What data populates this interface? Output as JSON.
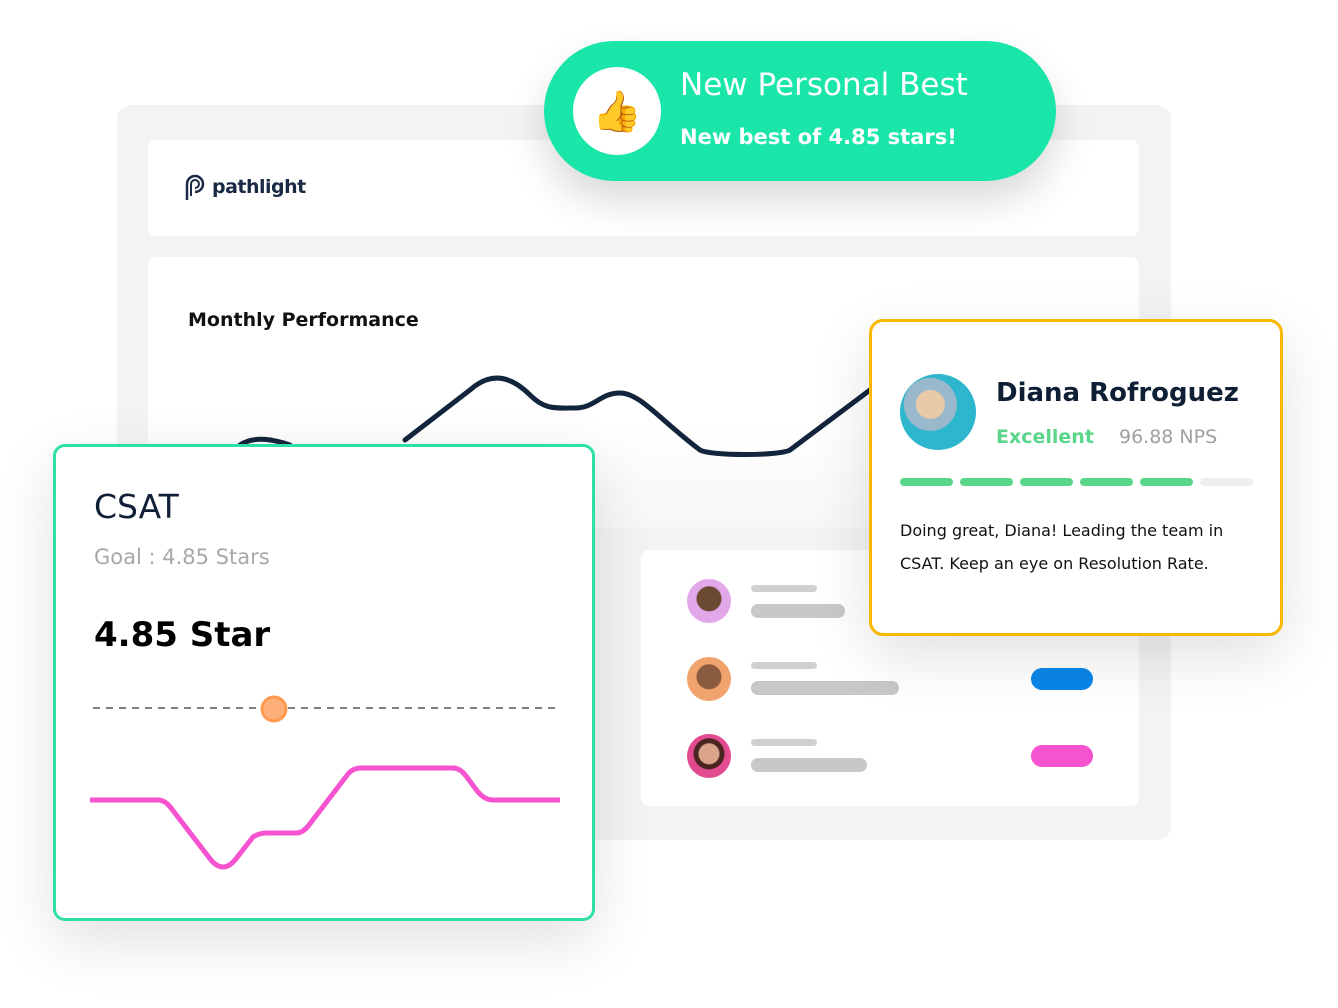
{
  "toast": {
    "title": "New Personal Best",
    "subtitle": "New best of 4.85 stars!",
    "icon": "thumbs-up-icon",
    "color": "#19e6a8"
  },
  "header": {
    "logo_text": "pathlight"
  },
  "monthly": {
    "title": "Monthly Performance"
  },
  "csat": {
    "title": "CSAT",
    "goal": "Goal : 4.85 Stars",
    "value": "4.85 Star",
    "accent": "#2ee0a8",
    "line_color": "#f553d0"
  },
  "list": {
    "rows": [
      {
        "pill": null
      },
      {
        "pill": "#0a86e8"
      },
      {
        "pill": "#f553d0"
      }
    ]
  },
  "agent": {
    "name": "Diana Rofroguez",
    "rating": "Excellent",
    "nps": "96.88 NPS",
    "progress_segments_filled": 5,
    "progress_segments_total": 6,
    "message": "Doing great, Diana! Leading the team in CSAT. Keep an eye on Resolution Rate.",
    "border_color": "#fbb800"
  }
}
